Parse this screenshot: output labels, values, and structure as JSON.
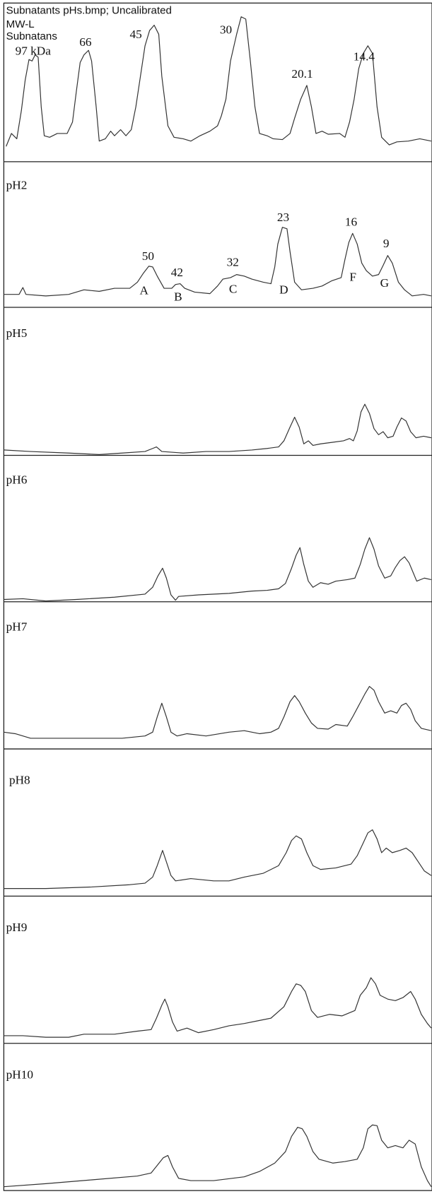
{
  "header": [
    "Subnatants pHs.bmp; Uncalibrated",
    "MW-L",
    "Subnatans"
  ],
  "markers": [
    "97 kDa",
    "66",
    "45",
    "30",
    "20.1",
    "14.4"
  ],
  "panels": [
    {
      "label": "pH2",
      "peaks": [
        "50",
        "42",
        "32",
        "23",
        "16",
        "9"
      ],
      "bands": [
        "A",
        "B",
        "C",
        "D",
        "F",
        "G"
      ]
    },
    {
      "label": "pH5"
    },
    {
      "label": "pH6"
    },
    {
      "label": "pH7"
    },
    {
      "label": "pH8"
    },
    {
      "label": "pH9"
    },
    {
      "label": "pH10"
    }
  ]
}
